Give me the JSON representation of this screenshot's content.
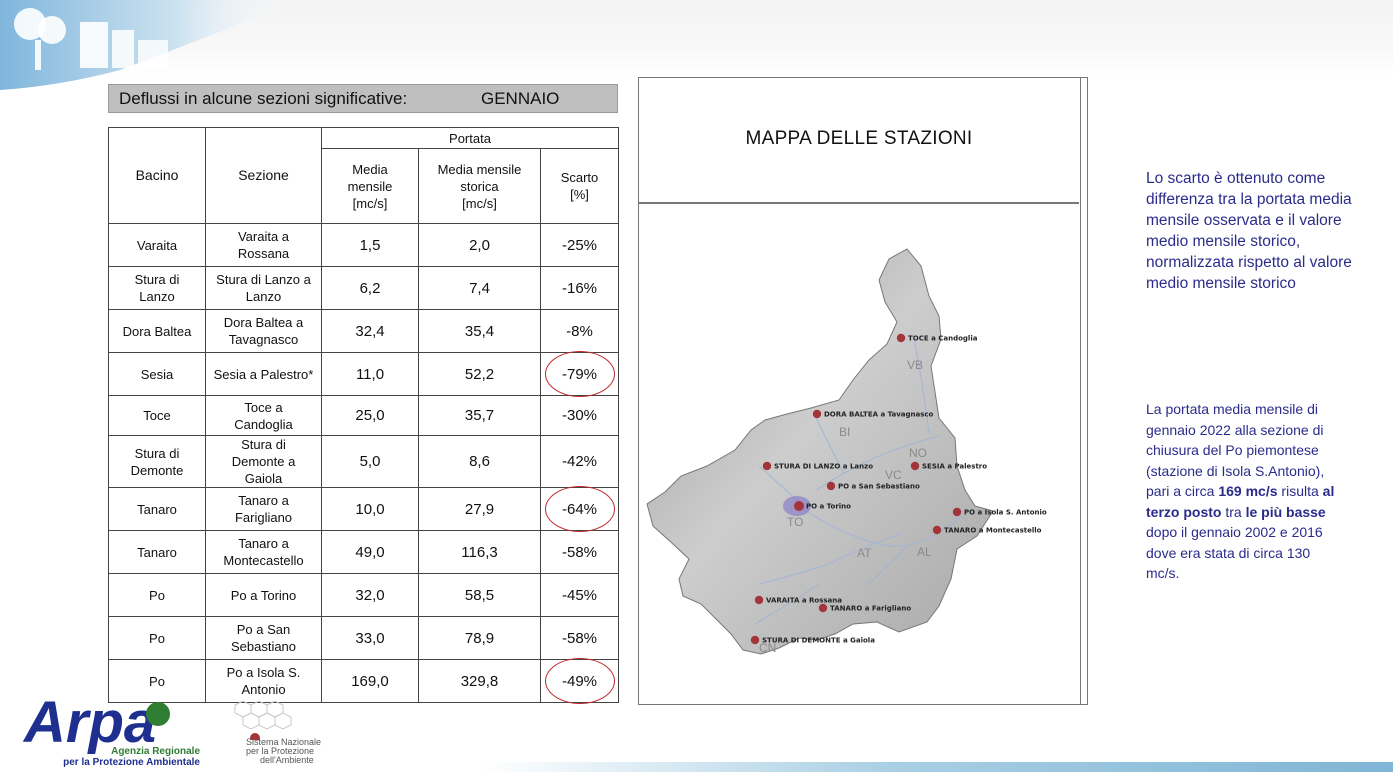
{
  "table": {
    "title": "Deflussi in alcune sezioni significative:",
    "month": "GENNAIO",
    "headers": {
      "bacino": "Bacino",
      "sezione": "Sezione",
      "portata": "Portata",
      "media_mensile": [
        "Media",
        "mensile",
        "[mc/s]"
      ],
      "media_storica": [
        "Media mensile",
        "storica",
        "[mc/s]"
      ],
      "scarto": [
        "Scarto",
        "[%]"
      ]
    },
    "rows": [
      {
        "bacino": [
          "Varaita"
        ],
        "sezione": [
          "Varaita a",
          "Rossana"
        ],
        "media": "1,5",
        "storica": "2,0",
        "scarto": "-25%",
        "circled": false
      },
      {
        "bacino": [
          "Stura di",
          "Lanzo"
        ],
        "sezione": [
          "Stura di Lanzo a",
          "Lanzo"
        ],
        "media": "6,2",
        "storica": "7,4",
        "scarto": "-16%",
        "circled": false
      },
      {
        "bacino": [
          "Dora Baltea"
        ],
        "sezione": [
          "Dora Baltea a",
          "Tavagnasco"
        ],
        "media": "32,4",
        "storica": "35,4",
        "scarto": "-8%",
        "circled": false
      },
      {
        "bacino": [
          "Sesia"
        ],
        "sezione": [
          "Sesia a Palestro*"
        ],
        "media": "11,0",
        "storica": "52,2",
        "scarto": "-79%",
        "circled": true
      },
      {
        "bacino": [
          "Toce"
        ],
        "sezione": [
          "Toce a",
          "Candoglia"
        ],
        "media": "25,0",
        "storica": "35,7",
        "scarto": "-30%",
        "circled": false
      },
      {
        "bacino": [
          "Stura di",
          "Demonte"
        ],
        "sezione": [
          "Stura di",
          "Demonte a",
          "Gaiola"
        ],
        "media": "5,0",
        "storica": "8,6",
        "scarto": "-42%",
        "circled": false
      },
      {
        "bacino": [
          "Tanaro"
        ],
        "sezione": [
          "Tanaro a",
          "Farigliano"
        ],
        "media": "10,0",
        "storica": "27,9",
        "scarto": "-64%",
        "circled": true
      },
      {
        "bacino": [
          "Tanaro"
        ],
        "sezione": [
          "Tanaro a",
          "Montecastello"
        ],
        "media": "49,0",
        "storica": "116,3",
        "scarto": "-58%",
        "circled": false
      },
      {
        "bacino": [
          "Po"
        ],
        "sezione": [
          "Po a Torino"
        ],
        "media": "32,0",
        "storica": "58,5",
        "scarto": "-45%",
        "circled": false
      },
      {
        "bacino": [
          "Po"
        ],
        "sezione": [
          "Po a San",
          "Sebastiano"
        ],
        "media": "33,0",
        "storica": "78,9",
        "scarto": "-58%",
        "circled": false
      },
      {
        "bacino": [
          "Po"
        ],
        "sezione": [
          "Po a Isola S.",
          "Antonio"
        ],
        "media": "169,0",
        "storica": "329,8",
        "scarto": "-49%",
        "circled": true
      }
    ]
  },
  "map": {
    "title": "MAPPA DELLE STAZIONI",
    "stations": [
      "TOCE a Candoglia",
      "DORA BALTEA a Tavagnasco",
      "STURA DI LANZO a Lanzo",
      "SESIA a Palestro",
      "PO a San Sebastiano",
      "PO a Torino",
      "PO a Isola S. Antonio",
      "TANARO a Montecastello",
      "VARAITA a Rossana",
      "TANARO a Farigliano",
      "STURA DI DEMONTE a Gaiola"
    ],
    "provinces": [
      "VB",
      "BI",
      "NO",
      "VC",
      "TO",
      "AT",
      "AL",
      "CN"
    ]
  },
  "note1": "Lo scarto è ottenuto come differenza tra la portata media mensile osservata e il valore medio mensile storico, normalizzata rispetto al valore medio mensile storico",
  "note2": {
    "p1": "La portata media mensile di gennaio 2022 alla sezione di chiusura del Po piemontese (stazione di Isola S.Antonio), pari a circa ",
    "b1": "169 mc/s",
    "p2": " risulta ",
    "b2": "al terzo posto",
    "p3": " tra ",
    "b3": "le più basse",
    "p4": " dopo il gennaio 2002 e 2016 dove era stata di circa 130 mc/s."
  },
  "logos": {
    "arpa_name": "Arpa",
    "arpa_line1": "Agenzia Regionale",
    "arpa_line2": "per la Protezione Ambientale",
    "snpa_line1": "Sistema Nazionale",
    "snpa_line2": "per la Protezione",
    "snpa_line3": "dell'Ambiente"
  },
  "colors": {
    "note_text": "#2b2b8c",
    "circle": "#c0292c",
    "station_dot": "#a2343a",
    "arpa_blue": "#1f2f8f",
    "arpa_green": "#2e7d32"
  }
}
